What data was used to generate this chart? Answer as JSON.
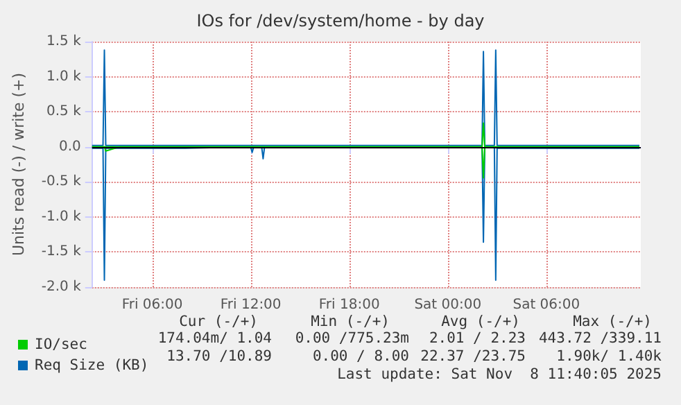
{
  "chart_data": {
    "type": "line",
    "title": "IOs for /dev/system/home - by day",
    "ylabel": "Units read (-) / write (+)",
    "x": [
      "2025-11-07T02:20",
      "2025-11-07T03:00",
      "2025-11-07T03:05",
      "2025-11-07T03:10",
      "2025-11-07T04:00",
      "2025-11-07T06:00",
      "2025-11-07T08:00",
      "2025-11-07T10:00",
      "2025-11-07T12:00",
      "2025-11-07T12:05",
      "2025-11-07T12:10",
      "2025-11-07T12:40",
      "2025-11-07T12:45",
      "2025-11-07T12:50",
      "2025-11-07T15:00",
      "2025-11-07T18:00",
      "2025-11-07T21:00",
      "2025-11-08T00:00",
      "2025-11-08T01:30",
      "2025-11-08T02:05",
      "2025-11-08T02:10",
      "2025-11-08T02:15",
      "2025-11-08T02:50",
      "2025-11-08T02:55",
      "2025-11-08T03:00",
      "2025-11-08T05:00",
      "2025-11-08T08:00",
      "2025-11-08T10:00",
      "2025-11-08T11:40"
    ],
    "series": [
      {
        "color": "#0066b3",
        "values": [
          -20,
          -20,
          -1900,
          -20,
          -20,
          -20,
          -20,
          -10,
          -10,
          -80,
          -10,
          -10,
          -170,
          -10,
          -10,
          -10,
          -10,
          -10,
          -10,
          -10,
          -1360,
          -10,
          -10,
          -1900,
          -20,
          -20,
          -20,
          -20,
          -20
        ]
      },
      {
        "name": "Req Size (KB)",
        "color": "#0066b3",
        "values": [
          20,
          20,
          1380,
          20,
          20,
          20,
          20,
          20,
          20,
          20,
          20,
          20,
          20,
          20,
          20,
          20,
          20,
          20,
          20,
          20,
          1360,
          20,
          20,
          1380,
          20,
          20,
          20,
          20,
          20
        ]
      },
      {
        "color": "#00cc00",
        "values": [
          0,
          0,
          0,
          -60,
          0,
          0,
          0,
          0,
          0,
          0,
          0,
          0,
          0,
          0,
          0,
          0,
          0,
          0,
          0,
          0,
          -443,
          0,
          0,
          0,
          0,
          0,
          0,
          0,
          0
        ]
      },
      {
        "name": "IO/sec",
        "color": "#00cc00",
        "values": [
          0,
          0,
          0,
          0,
          0,
          0,
          0,
          0,
          0,
          0,
          0,
          0,
          0,
          0,
          0,
          0,
          0,
          0,
          0,
          0,
          339,
          0,
          0,
          0,
          0,
          0,
          0,
          0,
          0
        ]
      }
    ],
    "xlim": [
      "2025-11-07T02:20",
      "2025-11-08T11:45"
    ],
    "xticks": [
      {
        "value": "2025-11-07T06:00",
        "label": "Fri 06:00"
      },
      {
        "value": "2025-11-07T12:00",
        "label": "Fri 12:00"
      },
      {
        "value": "2025-11-07T18:00",
        "label": "Fri 18:00"
      },
      {
        "value": "2025-11-08T00:00",
        "label": "Sat 00:00"
      },
      {
        "value": "2025-11-08T06:00",
        "label": "Sat 06:00"
      }
    ],
    "ylim": [
      -2000,
      1500
    ],
    "yticks": [
      {
        "value": -2000,
        "label": "-2.0 k"
      },
      {
        "value": -1500,
        "label": "-1.5 k"
      },
      {
        "value": -1000,
        "label": "-1.0 k"
      },
      {
        "value": -500,
        "label": "-0.5 k"
      },
      {
        "value": 0,
        "label": "0.0"
      },
      {
        "value": 500,
        "label": "0.5 k"
      },
      {
        "value": 1000,
        "label": "1.0 k"
      },
      {
        "value": 1500,
        "label": "1.5 k"
      }
    ],
    "ref_lines": [
      {
        "axis": "y",
        "value": 0,
        "color": "#000000"
      }
    ],
    "grid": true,
    "legend": "bottom left",
    "marker": "none",
    "line_style": "solid",
    "annotations": [
      "Cur (-/+)",
      "Min (-/+)",
      "Avg (-/+)",
      "Max (-/+)",
      "174.04m/ 1.04",
      "0.00 /775.23m",
      "2.01 / 2.23",
      "443.72 /339.11",
      "13.70 /10.89",
      "0.00 / 8.00",
      "22.37 /23.75",
      "1.90k/ 1.40k",
      "Last update: Sat Nov  8 11:40:05 2025"
    ]
  }
}
